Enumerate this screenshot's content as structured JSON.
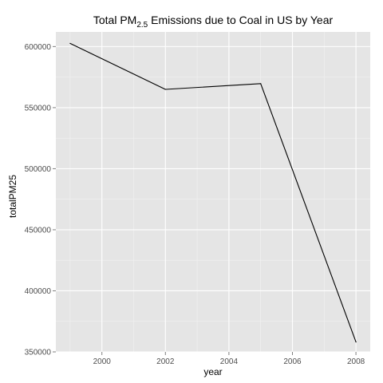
{
  "chart_data": {
    "type": "line",
    "title": {
      "prefix": "Total PM",
      "subscript": "2.5",
      "suffix": " Emissions due to Coal in US by Year"
    },
    "xlabel": "year",
    "ylabel": "totalPM25",
    "x": [
      1999,
      2002,
      2005,
      2008
    ],
    "series": [
      {
        "values": [
          602624,
          564936,
          569654,
          358084
        ]
      }
    ],
    "xlim": [
      1998.55,
      2008.45
    ],
    "ylim": [
      350000,
      612000
    ],
    "x_ticks": [
      2000,
      2002,
      2004,
      2006,
      2008
    ],
    "x_tick_labels": [
      "2000",
      "2002",
      "2004",
      "2006",
      "2008"
    ],
    "y_ticks": [
      350000,
      400000,
      450000,
      500000,
      550000,
      600000
    ],
    "y_tick_labels": [
      "350000",
      "400000",
      "450000",
      "500000",
      "550000",
      "600000"
    ],
    "grid": true,
    "legend": "none",
    "colors": {
      "panel": "#e5e5e5",
      "grid_major": "#ffffff",
      "grid_minor": "#f2f2f2",
      "line": "#000000",
      "tick": "#7f7f7f"
    }
  }
}
